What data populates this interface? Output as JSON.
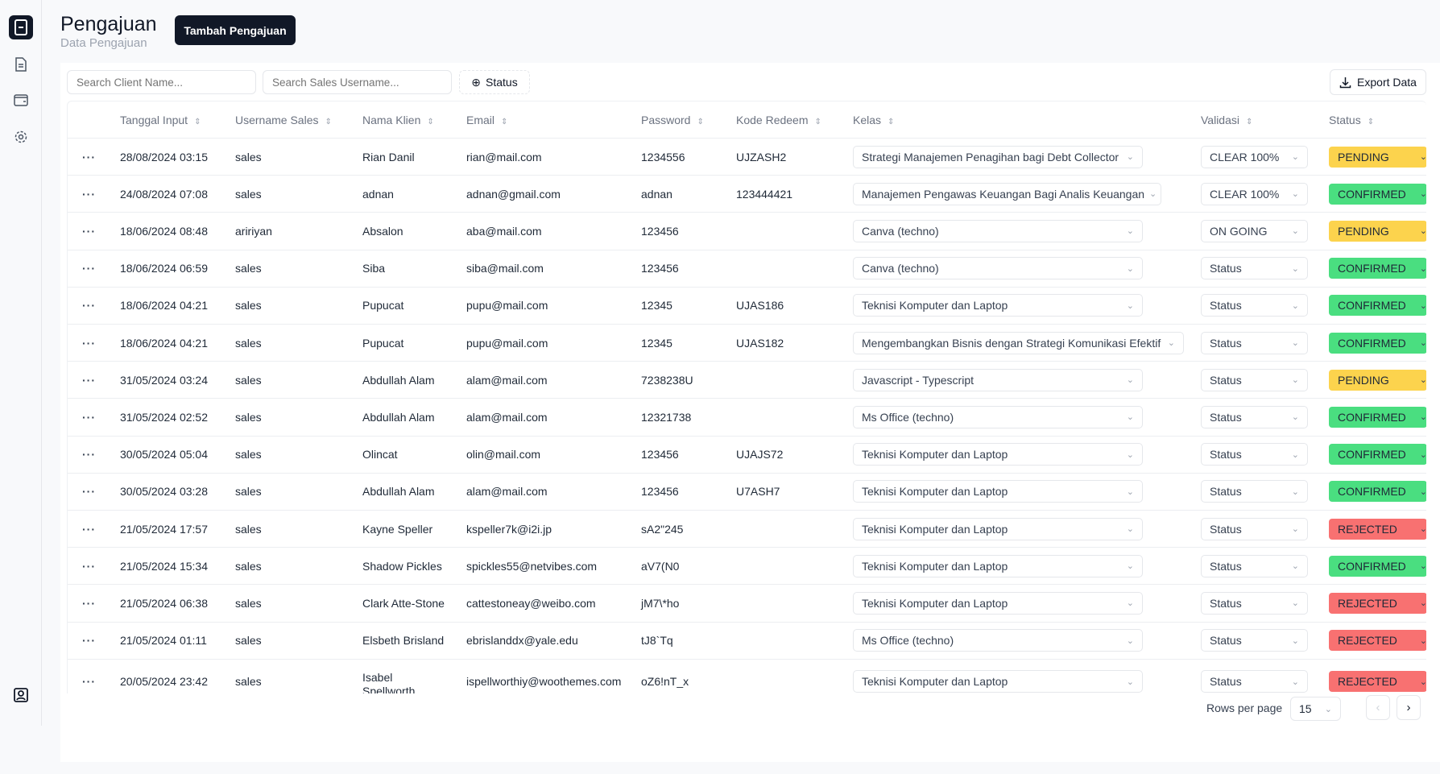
{
  "header": {
    "title": "Pengajuan",
    "subtitle": "Data Pengajuan",
    "add_button": "Tambah Pengajuan"
  },
  "sidebar": {
    "items": [
      {
        "icon": "tablet-icon",
        "active": true
      },
      {
        "icon": "document-icon"
      },
      {
        "icon": "wallet-icon"
      },
      {
        "icon": "gear-icon"
      }
    ],
    "bottom_icon": "user-profile-icon"
  },
  "filters": {
    "client_placeholder": "Search Client Name...",
    "sales_placeholder": "Search Sales Username...",
    "status_label": "Status",
    "export_label": "Export Data"
  },
  "table": {
    "columns": [
      "Tanggal Input",
      "Username Sales",
      "Nama Klien",
      "Email",
      "Password",
      "Kode Redeem",
      "Kelas",
      "Validasi",
      "Status"
    ],
    "rows": [
      {
        "date": "28/08/2024 03:15",
        "sales": "sales",
        "client": "Rian Danil",
        "email": "rian@mail.com",
        "password": "1234556",
        "code": "UJZASH2",
        "kelas": "Strategi Manajemen Penagihan bagi Debt Collector",
        "validasi": "CLEAR 100%",
        "status": "PENDING"
      },
      {
        "date": "24/08/2024 07:08",
        "sales": "sales",
        "client": "adnan",
        "email": "adnan@gmail.com",
        "password": "adnan",
        "code": "123444421",
        "kelas": "Manajemen Pengawas Keuangan Bagi Analis Keuangan",
        "validasi": "CLEAR 100%",
        "status": "CONFIRMED"
      },
      {
        "date": "18/06/2024 08:48",
        "sales": "aririyan",
        "client": "Absalon",
        "email": "aba@mail.com",
        "password": "123456",
        "code": "",
        "kelas": "Canva (techno)",
        "validasi": "ON GOING",
        "status": "PENDING"
      },
      {
        "date": "18/06/2024 06:59",
        "sales": "sales",
        "client": "Siba",
        "email": "siba@mail.com",
        "password": "123456",
        "code": "",
        "kelas": "Canva (techno)",
        "validasi": "Status",
        "status": "CONFIRMED"
      },
      {
        "date": "18/06/2024 04:21",
        "sales": "sales",
        "client": "Pupucat",
        "email": "pupu@mail.com",
        "password": "12345",
        "code": "UJAS186",
        "kelas": "Teknisi Komputer dan Laptop",
        "validasi": "Status",
        "status": "CONFIRMED"
      },
      {
        "date": "18/06/2024 04:21",
        "sales": "sales",
        "client": "Pupucat",
        "email": "pupu@mail.com",
        "password": "12345",
        "code": "UJAS182",
        "kelas": "Mengembangkan Bisnis dengan Strategi Komunikasi Efektif",
        "validasi": "Status",
        "status": "CONFIRMED"
      },
      {
        "date": "31/05/2024 03:24",
        "sales": "sales",
        "client": "Abdullah Alam",
        "email": "alam@mail.com",
        "password": "7238238U",
        "code": "",
        "kelas": "Javascript - Typescript",
        "validasi": "Status",
        "status": "PENDING"
      },
      {
        "date": "31/05/2024 02:52",
        "sales": "sales",
        "client": "Abdullah Alam",
        "email": "alam@mail.com",
        "password": "12321738",
        "code": "",
        "kelas": "Ms Office (techno)",
        "validasi": "Status",
        "status": "CONFIRMED"
      },
      {
        "date": "30/05/2024 05:04",
        "sales": "sales",
        "client": "Olincat",
        "email": "olin@mail.com",
        "password": "123456",
        "code": "UJAJS72",
        "kelas": "Teknisi Komputer dan Laptop",
        "validasi": "Status",
        "status": "CONFIRMED"
      },
      {
        "date": "30/05/2024 03:28",
        "sales": "sales",
        "client": "Abdullah Alam",
        "email": "alam@mail.com",
        "password": "123456",
        "code": "U7ASH7",
        "kelas": "Teknisi Komputer dan Laptop",
        "validasi": "Status",
        "status": "CONFIRMED"
      },
      {
        "date": "21/05/2024 17:57",
        "sales": "sales",
        "client": "Kayne Speller",
        "email": "kspeller7k@i2i.jp",
        "password": "sA2\"245",
        "code": "",
        "kelas": "Teknisi Komputer dan Laptop",
        "validasi": "Status",
        "status": "REJECTED"
      },
      {
        "date": "21/05/2024 15:34",
        "sales": "sales",
        "client": "Shadow Pickles",
        "email": "spickles55@netvibes.com",
        "password": "aV7(N0",
        "code": "",
        "kelas": "Teknisi Komputer dan Laptop",
        "validasi": "Status",
        "status": "CONFIRMED"
      },
      {
        "date": "21/05/2024 06:38",
        "sales": "sales",
        "client": "Clark Atte-Stone",
        "email": "cattestoneay@weibo.com",
        "password": "jM7\\*ho",
        "code": "",
        "kelas": "Teknisi Komputer dan Laptop",
        "validasi": "Status",
        "status": "REJECTED"
      },
      {
        "date": "21/05/2024 01:11",
        "sales": "sales",
        "client": "Elsbeth Brisland",
        "email": "ebrislanddx@yale.edu",
        "password": "tJ8`Tq",
        "code": "",
        "kelas": "Ms Office (techno)",
        "validasi": "Status",
        "status": "REJECTED"
      },
      {
        "date": "20/05/2024 23:42",
        "sales": "sales",
        "client": "Isabel Spellworth",
        "email": "ispellworthiy@woothemes.com",
        "password": "oZ6!nT_x",
        "code": "",
        "kelas": "Teknisi Komputer dan Laptop",
        "validasi": "Status",
        "status": "REJECTED"
      }
    ]
  },
  "status_colors": {
    "PENDING": "#fcd34d",
    "CONFIRMED": "#4ade80",
    "REJECTED": "#f87171"
  },
  "pagination": {
    "rows_per_page_label": "Rows per page",
    "rows_per_page": "15"
  }
}
